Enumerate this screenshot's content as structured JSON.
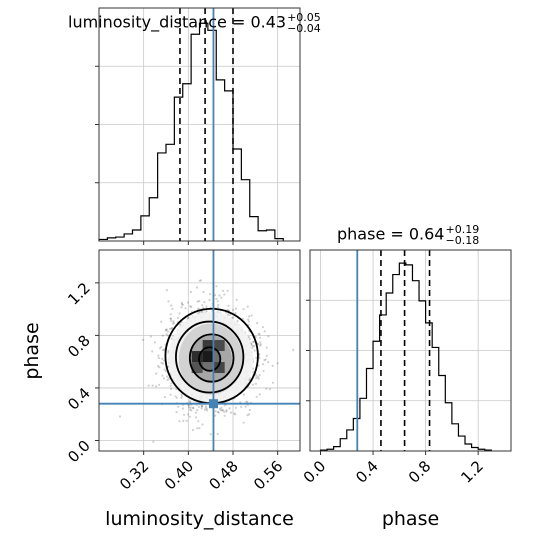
{
  "chart_data": {
    "type": "corner",
    "parameters": [
      "luminosity_distance",
      "phase"
    ],
    "titles": {
      "luminosity_distance": {
        "label": "luminosity_distance",
        "median": "0.43",
        "plus": "+0.05",
        "minus": "−0.04"
      },
      "phase": {
        "label": "phase",
        "median": "0.64",
        "plus": "+0.19",
        "minus": "−0.18"
      }
    },
    "truths": {
      "luminosity_distance": 0.445,
      "phase": 0.28
    },
    "truth_color": "#4682b4",
    "quantiles": {
      "luminosity_distance": [
        0.385,
        0.43,
        0.48
      ],
      "phase": [
        0.46,
        0.64,
        0.83
      ]
    },
    "hist_luminosity_distance": {
      "bin_edges": [
        0.24,
        0.255,
        0.27,
        0.285,
        0.3,
        0.315,
        0.33,
        0.345,
        0.36,
        0.375,
        0.39,
        0.405,
        0.42,
        0.435,
        0.45,
        0.465,
        0.48,
        0.495,
        0.51,
        0.525,
        0.54,
        0.555,
        0.57
      ],
      "counts": [
        2,
        4,
        5,
        9,
        14,
        32,
        55,
        112,
        123,
        183,
        200,
        263,
        277,
        268,
        205,
        191,
        117,
        78,
        31,
        13,
        14,
        3
      ]
    },
    "hist_phase": {
      "bin_edges": [
        0.0,
        0.05,
        0.1,
        0.15,
        0.2,
        0.25,
        0.3,
        0.35,
        0.4,
        0.45,
        0.5,
        0.55,
        0.6,
        0.65,
        0.7,
        0.75,
        0.8,
        0.85,
        0.9,
        0.95,
        1.0,
        1.05,
        1.1,
        1.15,
        1.2,
        1.25,
        1.3
      ],
      "counts": [
        1,
        2,
        5,
        14,
        24,
        37,
        60,
        94,
        125,
        155,
        180,
        201,
        214,
        212,
        194,
        171,
        146,
        118,
        86,
        55,
        31,
        17,
        8,
        4,
        2,
        1
      ]
    },
    "joint": {
      "center": [
        0.44,
        0.62
      ],
      "sigma": [
        0.038,
        0.18
      ],
      "contour_levels_sigma": [
        0.5,
        1.0,
        1.5,
        2.0
      ]
    },
    "axes": {
      "luminosity_distance": {
        "xlim": [
          0.24,
          0.6
        ],
        "ticks": [
          0.32,
          0.4,
          0.48,
          0.56
        ],
        "tick_labels": [
          "0.32",
          "0.40",
          "0.48",
          "0.56"
        ],
        "xlabel": "luminosity_distance"
      },
      "phase": {
        "lim": [
          -0.08,
          1.45
        ],
        "ticks": [
          0.0,
          0.4,
          0.8,
          1.2
        ],
        "tick_labels": [
          "0.0",
          "0.4",
          "0.8",
          "1.2"
        ],
        "label": "phase"
      }
    },
    "grid": true
  }
}
